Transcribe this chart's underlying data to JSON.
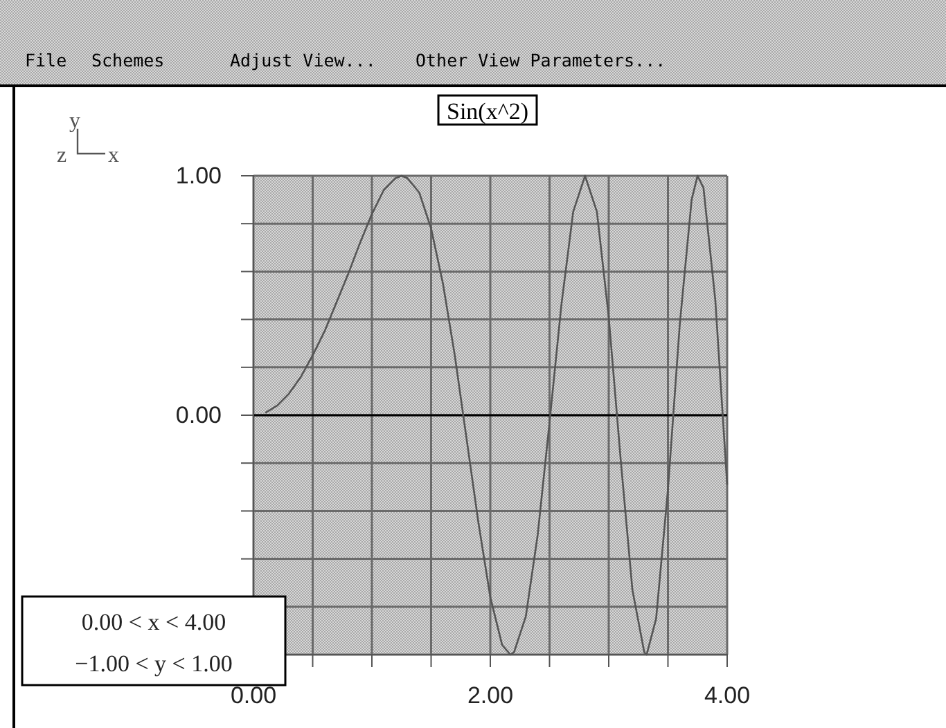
{
  "chart_data": {
    "type": "line",
    "title": "Sin(x^2)",
    "annotations": [
      "File",
      "Schemes",
      "Adjust View...",
      "Other View Parameters...",
      "0.00 < x < 4.00",
      "−1.00 < y < 1.00",
      "y",
      "z",
      "x"
    ],
    "x": [
      0.1,
      0.2,
      0.3,
      0.4,
      0.5,
      0.6,
      0.7,
      0.8,
      0.9,
      1.0,
      1.1,
      1.2,
      1.25,
      1.3,
      1.4,
      1.5,
      1.6,
      1.7,
      1.8,
      1.9,
      2.0,
      2.1,
      2.17,
      2.2,
      2.3,
      2.4,
      2.5,
      2.6,
      2.7,
      2.8,
      2.9,
      3.0,
      3.1,
      3.2,
      3.3,
      3.32,
      3.4,
      3.5,
      3.6,
      3.7,
      3.75,
      3.8,
      3.9,
      4.0
    ],
    "series": [
      {
        "color": "#555555",
        "values": [
          0.01,
          0.04,
          0.09,
          0.16,
          0.25,
          0.35,
          0.47,
          0.59,
          0.72,
          0.84,
          0.94,
          0.99,
          1.0,
          0.99,
          0.93,
          0.78,
          0.55,
          0.25,
          -0.1,
          -0.45,
          -0.76,
          -0.96,
          -1.0,
          -0.99,
          -0.84,
          -0.5,
          -0.03,
          0.46,
          0.85,
          1.0,
          0.85,
          0.41,
          -0.18,
          -0.73,
          -0.99,
          -1.0,
          -0.85,
          -0.31,
          0.38,
          0.9,
          1.0,
          0.95,
          0.48,
          -0.29
        ]
      }
    ],
    "xlim": [
      0,
      4
    ],
    "xticks": [
      {
        "value": 0,
        "label": "0.00"
      },
      {
        "value": 0.5,
        "label": null
      },
      {
        "value": 1,
        "label": null
      },
      {
        "value": 1.5,
        "label": null
      },
      {
        "value": 2,
        "label": "2.00"
      },
      {
        "value": 2.5,
        "label": null
      },
      {
        "value": 3,
        "label": null
      },
      {
        "value": 3.5,
        "label": null
      },
      {
        "value": 4,
        "label": "4.00"
      }
    ],
    "ylim": [
      -1,
      1
    ],
    "yticks": [
      {
        "value": -1,
        "label": null
      },
      {
        "value": -0.8,
        "label": null
      },
      {
        "value": -0.6,
        "label": null
      },
      {
        "value": -0.4,
        "label": null
      },
      {
        "value": -0.2,
        "label": null
      },
      {
        "value": 0,
        "label": "0.00"
      },
      {
        "value": 0.2,
        "label": null
      },
      {
        "value": 0.4,
        "label": null
      },
      {
        "value": 0.6,
        "label": null
      },
      {
        "value": 0.8,
        "label": null
      },
      {
        "value": 1,
        "label": "1.00"
      }
    ],
    "ref_lines": [
      {
        "axis": "y",
        "value": 0,
        "color": "#000000"
      }
    ],
    "grid": true,
    "marker": "none",
    "line_style": "solid"
  }
}
